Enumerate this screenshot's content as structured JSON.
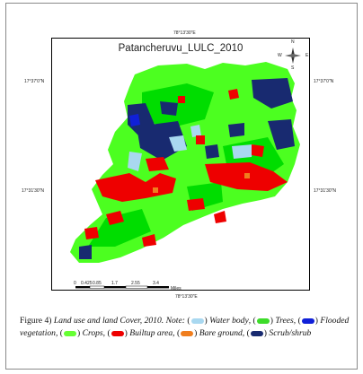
{
  "map": {
    "title": "Patancheruvu_LULC_2010",
    "coords": {
      "lon_top": "78°13'30\"E",
      "lon_bottom": "78°13'30\"E",
      "lat_upper_left": "17°37'0\"N",
      "lat_upper_right": "17°37'0\"N",
      "lat_mid_left": "17°31'30\"N",
      "lat_mid_right": "17°31'30\"N"
    },
    "north_arrow": {
      "n": "N",
      "s": "S",
      "e": "E",
      "w": "W"
    },
    "scale_bar": {
      "ticks": [
        "0",
        "0.425",
        "0.85",
        "1.7",
        "2.55",
        "3.4"
      ],
      "unit": "Miles"
    },
    "colors": {
      "water_body": "#a9d8f0",
      "trees": "#00dd00",
      "flooded_vegetation": "#1020d8",
      "crops": "#4cff20",
      "builtup_area": "#ee0000",
      "bare_ground": "#f07e1e",
      "scrub_shrub": "#182a70"
    }
  },
  "caption": {
    "label": "Figure 4)",
    "text": "Land use and land Cover, 2010. Note:",
    "legend": [
      {
        "name": "Water body",
        "color": "#a9d8f0"
      },
      {
        "name": "Trees",
        "color": "#3ddc2a"
      },
      {
        "name": "Flooded vegetation",
        "color": "#1020d8"
      },
      {
        "name": "Crops",
        "color": "#66ff33"
      },
      {
        "name": "Builtup area",
        "color": "#ee0000"
      },
      {
        "name": "Bare ground",
        "color": "#f07e1e"
      },
      {
        "name": "Scrub/shrub",
        "color": "#182a70"
      }
    ]
  }
}
